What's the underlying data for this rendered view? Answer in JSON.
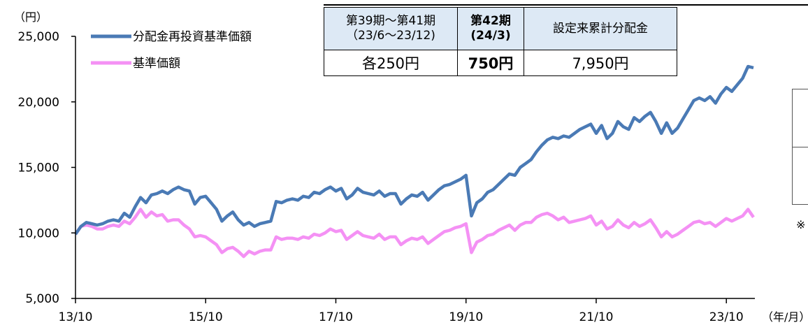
{
  "unit_label": "（円）",
  "x_unit_label": "（年/月）",
  "legend": [
    {
      "label": "分配金再投資基準価額",
      "color": "#4a7ab5"
    },
    {
      "label": "基準価額",
      "color": "#f491f4"
    }
  ],
  "table": {
    "headers": [
      {
        "line1": "第39期～第41期",
        "line2": "（23/6～23/12)"
      },
      {
        "line1": "第42期",
        "line2": "(24/3)"
      },
      {
        "line1": "設定来累計分配金",
        "line2": ""
      }
    ],
    "values": [
      "各250円",
      "750円",
      "7,950円"
    ]
  },
  "side_note": "※",
  "chart_data": {
    "type": "line",
    "xlabel": "（年/月）",
    "ylabel": "（円）",
    "ylim": [
      5000,
      25000
    ],
    "y_ticks": [
      "5,000",
      "10,000",
      "15,000",
      "20,000",
      "25,000"
    ],
    "x_ticks": [
      "13/10",
      "15/10",
      "17/10",
      "19/10",
      "21/10",
      "23/10"
    ],
    "x_tick_positions_months": [
      0,
      24,
      48,
      72,
      96,
      120
    ],
    "x_range_months": [
      0,
      125
    ],
    "legend_position": "top-left",
    "series": [
      {
        "name": "分配金再投資基準価額",
        "color": "#4a7ab5",
        "points": [
          [
            0,
            9900
          ],
          [
            1,
            10500
          ],
          [
            2,
            10800
          ],
          [
            3,
            10700
          ],
          [
            4,
            10600
          ],
          [
            5,
            10700
          ],
          [
            6,
            10900
          ],
          [
            7,
            11000
          ],
          [
            8,
            10900
          ],
          [
            9,
            11500
          ],
          [
            10,
            11200
          ],
          [
            11,
            12000
          ],
          [
            12,
            12700
          ],
          [
            13,
            12300
          ],
          [
            14,
            12900
          ],
          [
            15,
            13000
          ],
          [
            16,
            13200
          ],
          [
            17,
            13000
          ],
          [
            18,
            13300
          ],
          [
            19,
            13500
          ],
          [
            20,
            13300
          ],
          [
            21,
            13200
          ],
          [
            22,
            12200
          ],
          [
            23,
            12700
          ],
          [
            24,
            12800
          ],
          [
            25,
            12300
          ],
          [
            26,
            11800
          ],
          [
            27,
            10900
          ],
          [
            28,
            11300
          ],
          [
            29,
            11600
          ],
          [
            30,
            11000
          ],
          [
            31,
            10600
          ],
          [
            32,
            10800
          ],
          [
            33,
            10500
          ],
          [
            34,
            10700
          ],
          [
            35,
            10800
          ],
          [
            36,
            10900
          ],
          [
            37,
            12400
          ],
          [
            38,
            12300
          ],
          [
            39,
            12500
          ],
          [
            40,
            12600
          ],
          [
            41,
            12500
          ],
          [
            42,
            12800
          ],
          [
            43,
            12700
          ],
          [
            44,
            13100
          ],
          [
            45,
            13000
          ],
          [
            46,
            13300
          ],
          [
            47,
            13500
          ],
          [
            48,
            13200
          ],
          [
            49,
            13400
          ],
          [
            50,
            12600
          ],
          [
            51,
            12900
          ],
          [
            52,
            13400
          ],
          [
            53,
            13100
          ],
          [
            54,
            13000
          ],
          [
            55,
            12900
          ],
          [
            56,
            13200
          ],
          [
            57,
            12800
          ],
          [
            58,
            13000
          ],
          [
            59,
            13000
          ],
          [
            60,
            12200
          ],
          [
            61,
            12600
          ],
          [
            62,
            12900
          ],
          [
            63,
            12800
          ],
          [
            64,
            13100
          ],
          [
            65,
            12500
          ],
          [
            66,
            12900
          ],
          [
            67,
            13300
          ],
          [
            68,
            13600
          ],
          [
            69,
            13700
          ],
          [
            70,
            13900
          ],
          [
            71,
            14100
          ],
          [
            72,
            14400
          ],
          [
            73,
            11300
          ],
          [
            74,
            12300
          ],
          [
            75,
            12600
          ],
          [
            76,
            13100
          ],
          [
            77,
            13300
          ],
          [
            78,
            13700
          ],
          [
            79,
            14100
          ],
          [
            80,
            14500
          ],
          [
            81,
            14400
          ],
          [
            82,
            15000
          ],
          [
            83,
            15300
          ],
          [
            84,
            15600
          ],
          [
            85,
            16200
          ],
          [
            86,
            16700
          ],
          [
            87,
            17100
          ],
          [
            88,
            17300
          ],
          [
            89,
            17200
          ],
          [
            90,
            17400
          ],
          [
            91,
            17300
          ],
          [
            92,
            17600
          ],
          [
            93,
            17900
          ],
          [
            94,
            18100
          ],
          [
            95,
            18300
          ],
          [
            96,
            17600
          ],
          [
            97,
            18200
          ],
          [
            98,
            17200
          ],
          [
            99,
            17600
          ],
          [
            100,
            18500
          ],
          [
            101,
            18100
          ],
          [
            102,
            17900
          ],
          [
            103,
            18800
          ],
          [
            104,
            18500
          ],
          [
            105,
            18900
          ],
          [
            106,
            19200
          ],
          [
            107,
            18500
          ],
          [
            108,
            17600
          ],
          [
            109,
            18400
          ],
          [
            110,
            17600
          ],
          [
            111,
            18000
          ],
          [
            112,
            18700
          ],
          [
            113,
            19400
          ],
          [
            114,
            20100
          ],
          [
            115,
            20300
          ],
          [
            116,
            20100
          ],
          [
            117,
            20400
          ],
          [
            118,
            19900
          ],
          [
            119,
            20600
          ],
          [
            120,
            21100
          ],
          [
            121,
            20800
          ],
          [
            122,
            21300
          ],
          [
            123,
            21800
          ],
          [
            124,
            22700
          ],
          [
            125,
            22600
          ]
        ]
      },
      {
        "name": "基準価額",
        "color": "#f491f4",
        "points": [
          [
            0,
            9900
          ],
          [
            1,
            10500
          ],
          [
            2,
            10600
          ],
          [
            3,
            10500
          ],
          [
            4,
            10300
          ],
          [
            5,
            10300
          ],
          [
            6,
            10500
          ],
          [
            7,
            10600
          ],
          [
            8,
            10500
          ],
          [
            9,
            10900
          ],
          [
            10,
            10700
          ],
          [
            11,
            11200
          ],
          [
            12,
            11800
          ],
          [
            13,
            11200
          ],
          [
            14,
            11600
          ],
          [
            15,
            11300
          ],
          [
            16,
            11400
          ],
          [
            17,
            10900
          ],
          [
            18,
            11000
          ],
          [
            19,
            11000
          ],
          [
            20,
            10600
          ],
          [
            21,
            10300
          ],
          [
            22,
            9700
          ],
          [
            23,
            9800
          ],
          [
            24,
            9700
          ],
          [
            25,
            9400
          ],
          [
            26,
            9100
          ],
          [
            27,
            8500
          ],
          [
            28,
            8800
          ],
          [
            29,
            8900
          ],
          [
            30,
            8600
          ],
          [
            31,
            8200
          ],
          [
            32,
            8600
          ],
          [
            33,
            8400
          ],
          [
            34,
            8600
          ],
          [
            35,
            8700
          ],
          [
            36,
            8700
          ],
          [
            37,
            9700
          ],
          [
            38,
            9500
          ],
          [
            39,
            9600
          ],
          [
            40,
            9600
          ],
          [
            41,
            9500
          ],
          [
            42,
            9700
          ],
          [
            43,
            9600
          ],
          [
            44,
            9900
          ],
          [
            45,
            9800
          ],
          [
            46,
            10000
          ],
          [
            47,
            10300
          ],
          [
            48,
            10100
          ],
          [
            49,
            10200
          ],
          [
            50,
            9500
          ],
          [
            51,
            9800
          ],
          [
            52,
            10100
          ],
          [
            53,
            9800
          ],
          [
            54,
            9700
          ],
          [
            55,
            9600
          ],
          [
            56,
            9900
          ],
          [
            57,
            9500
          ],
          [
            58,
            9700
          ],
          [
            59,
            9700
          ],
          [
            60,
            9100
          ],
          [
            61,
            9400
          ],
          [
            62,
            9600
          ],
          [
            63,
            9500
          ],
          [
            64,
            9700
          ],
          [
            65,
            9200
          ],
          [
            66,
            9500
          ],
          [
            67,
            9800
          ],
          [
            68,
            10100
          ],
          [
            69,
            10200
          ],
          [
            70,
            10400
          ],
          [
            71,
            10500
          ],
          [
            72,
            10700
          ],
          [
            73,
            8500
          ],
          [
            74,
            9300
          ],
          [
            75,
            9500
          ],
          [
            76,
            9800
          ],
          [
            77,
            9900
          ],
          [
            78,
            10200
          ],
          [
            79,
            10400
          ],
          [
            80,
            10600
          ],
          [
            81,
            10200
          ],
          [
            82,
            10600
          ],
          [
            83,
            10800
          ],
          [
            84,
            10800
          ],
          [
            85,
            11200
          ],
          [
            86,
            11400
          ],
          [
            87,
            11500
          ],
          [
            88,
            11300
          ],
          [
            89,
            11000
          ],
          [
            90,
            11200
          ],
          [
            91,
            10800
          ],
          [
            92,
            10900
          ],
          [
            93,
            11000
          ],
          [
            94,
            11100
          ],
          [
            95,
            11300
          ],
          [
            96,
            10600
          ],
          [
            97,
            10900
          ],
          [
            98,
            10300
          ],
          [
            99,
            10500
          ],
          [
            100,
            11000
          ],
          [
            101,
            10600
          ],
          [
            102,
            10400
          ],
          [
            103,
            10800
          ],
          [
            104,
            10500
          ],
          [
            105,
            10700
          ],
          [
            106,
            11000
          ],
          [
            107,
            10400
          ],
          [
            108,
            9700
          ],
          [
            109,
            10100
          ],
          [
            110,
            9700
          ],
          [
            111,
            9900
          ],
          [
            112,
            10200
          ],
          [
            113,
            10500
          ],
          [
            114,
            10800
          ],
          [
            115,
            10900
          ],
          [
            116,
            10700
          ],
          [
            117,
            10800
          ],
          [
            118,
            10500
          ],
          [
            119,
            10800
          ],
          [
            120,
            11100
          ],
          [
            121,
            10900
          ],
          [
            122,
            11100
          ],
          [
            123,
            11300
          ],
          [
            124,
            11800
          ],
          [
            125,
            11200
          ]
        ]
      }
    ]
  }
}
